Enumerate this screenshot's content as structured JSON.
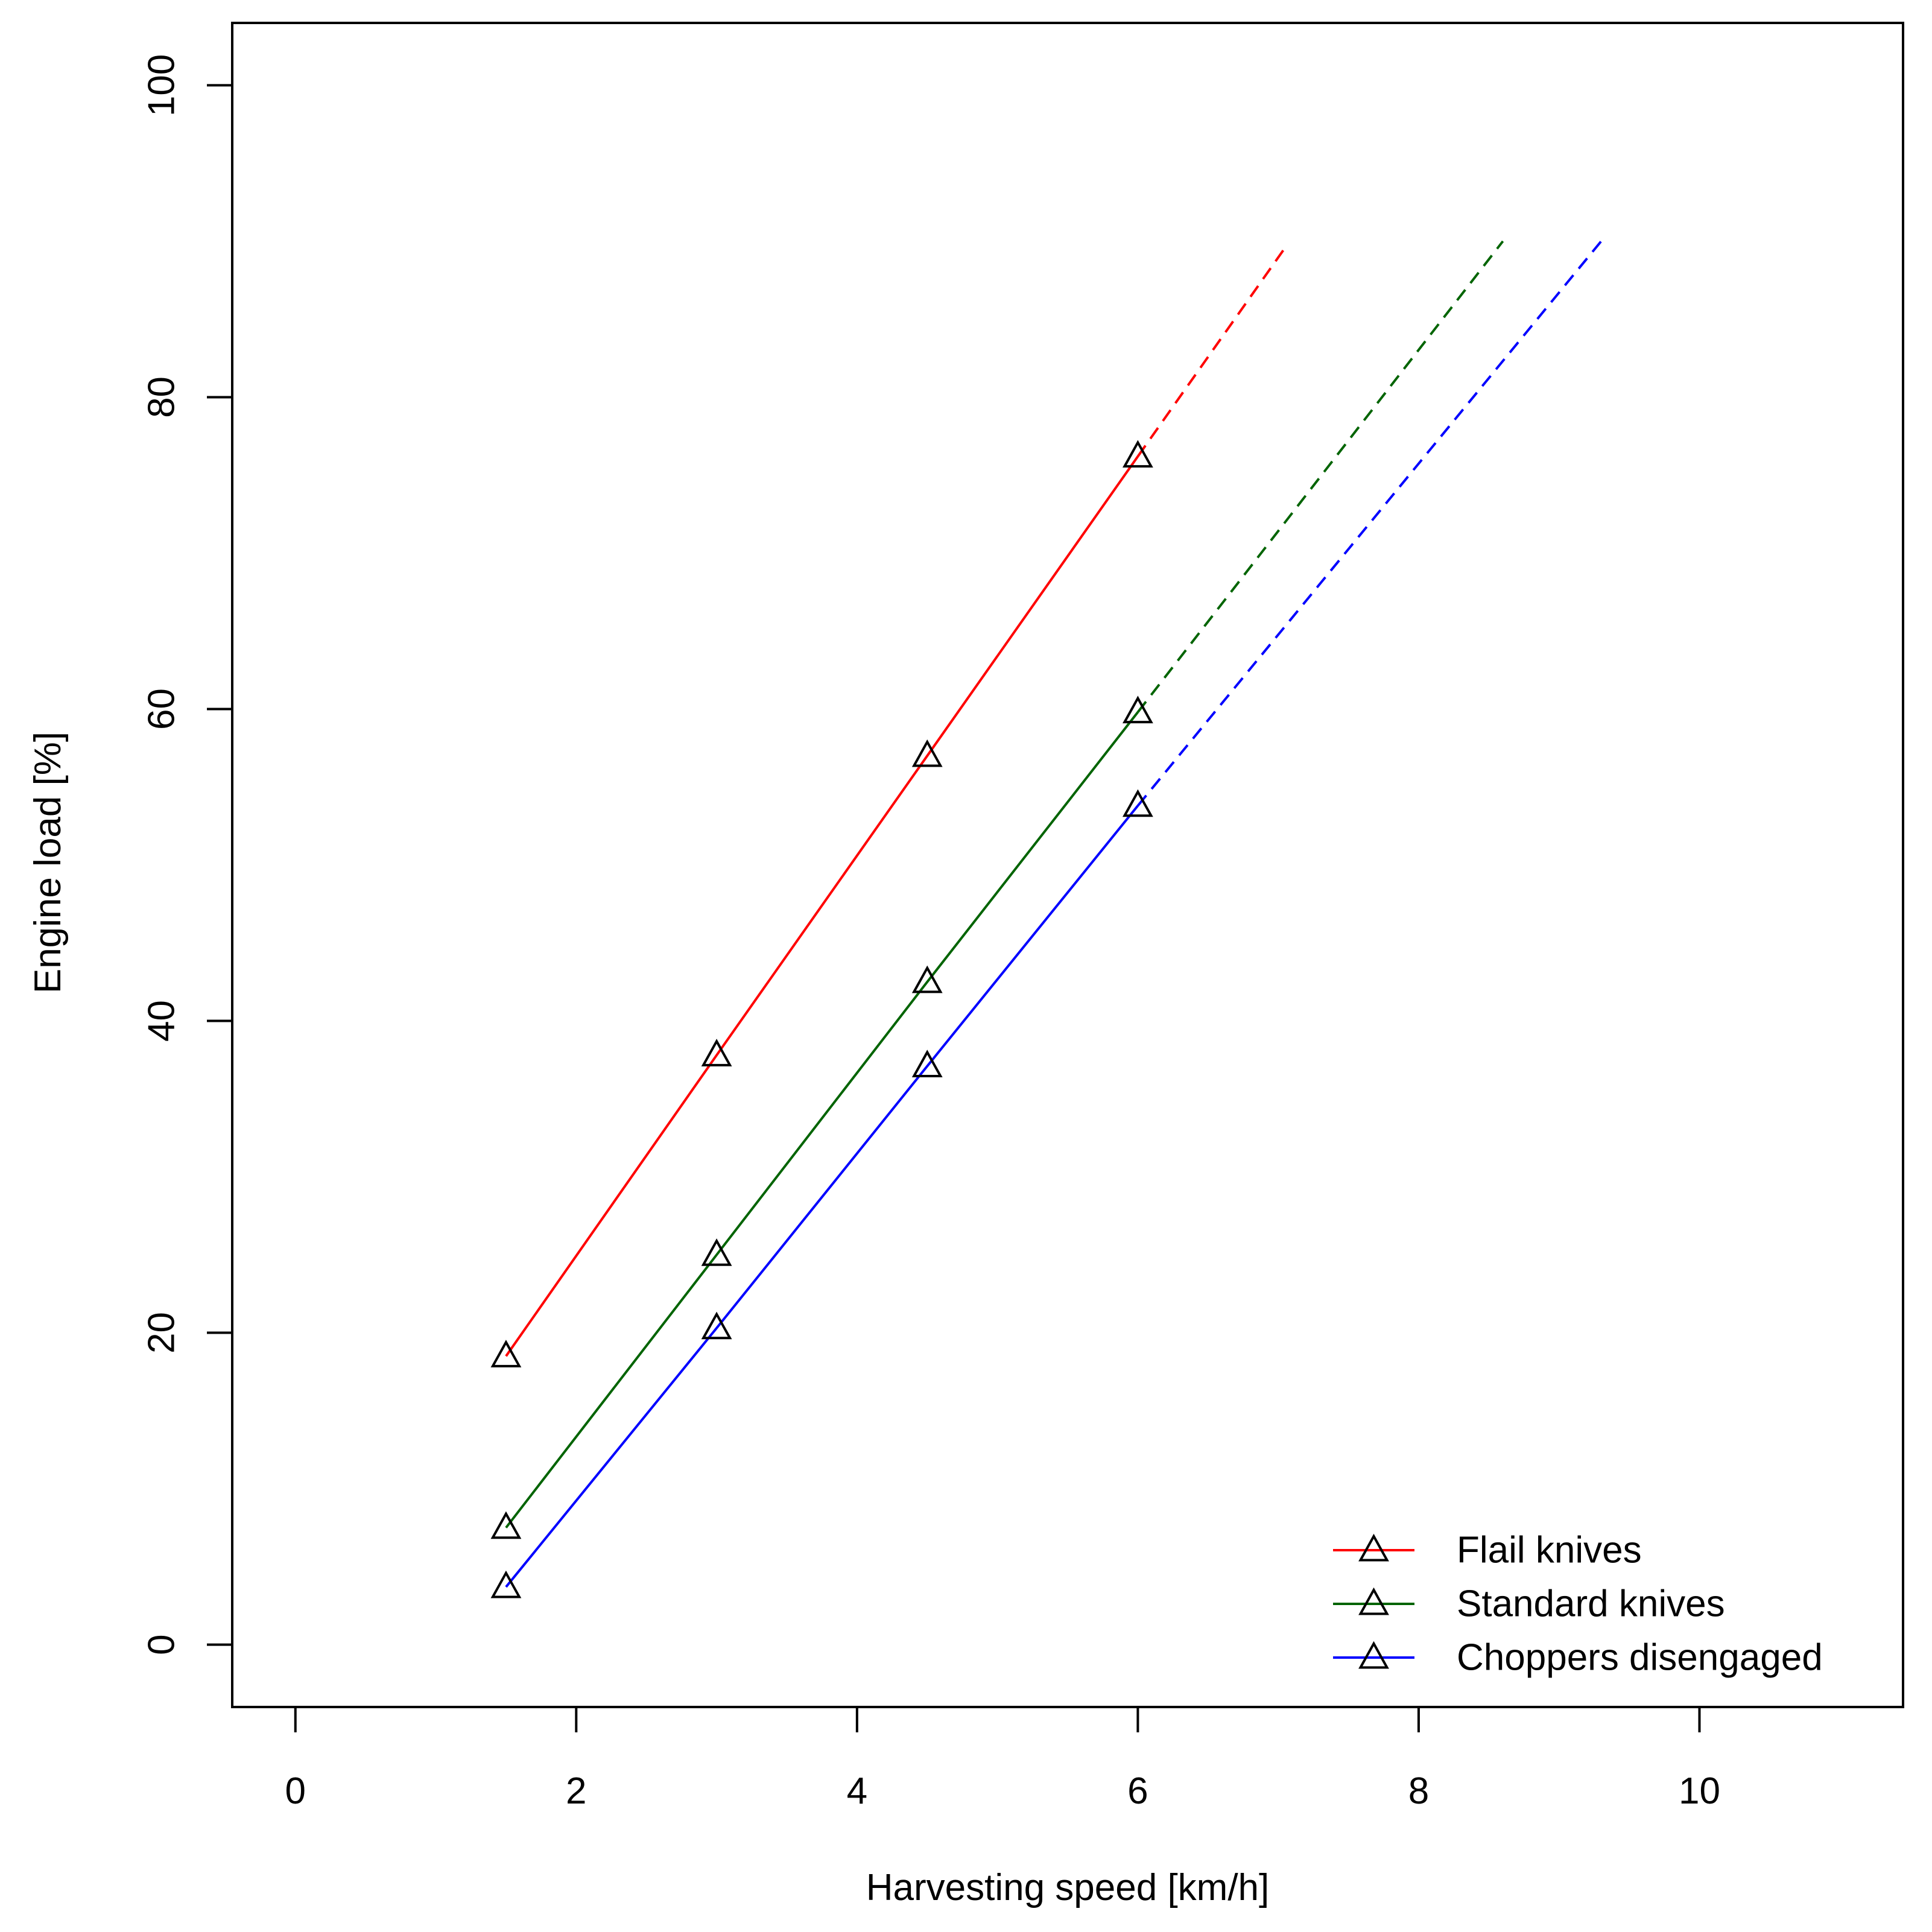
{
  "chart_data": {
    "type": "line",
    "title": "",
    "xlabel": "Harvesting speed [km/h]",
    "ylabel": "Engine load [%]",
    "xlim": [
      -0.45,
      11.45
    ],
    "ylim": [
      -4,
      104
    ],
    "xticks": [
      0,
      2,
      4,
      6,
      8,
      10
    ],
    "yticks": [
      0,
      20,
      40,
      60,
      80,
      100
    ],
    "grid": false,
    "legend_position": "bottom-right",
    "marker": "open-triangle",
    "series": [
      {
        "name": "Flail knives",
        "color": "#ff0000",
        "x": [
          1.5,
          3.0,
          4.5,
          6.0
        ],
        "values": [
          18.5,
          37.8,
          57.0,
          76.2
        ],
        "extrapolation": {
          "style": "dashed",
          "x": [
            6.0,
            7.05
          ],
          "values": [
            76.2,
            89.6
          ]
        }
      },
      {
        "name": "Standard knives",
        "color": "#006400",
        "x": [
          1.5,
          3.0,
          4.5,
          6.0
        ],
        "values": [
          7.5,
          25.0,
          42.5,
          59.8
        ],
        "extrapolation": {
          "style": "dashed",
          "x": [
            6.0,
            8.6
          ],
          "values": [
            59.8,
            90.0
          ]
        }
      },
      {
        "name": "Choppers disengaged",
        "color": "#0000ff",
        "x": [
          1.5,
          3.0,
          4.5,
          6.0
        ],
        "values": [
          3.7,
          20.3,
          37.1,
          53.8
        ],
        "extrapolation": {
          "style": "dashed",
          "x": [
            6.0,
            9.3
          ],
          "values": [
            53.8,
            90.0
          ]
        }
      }
    ]
  }
}
